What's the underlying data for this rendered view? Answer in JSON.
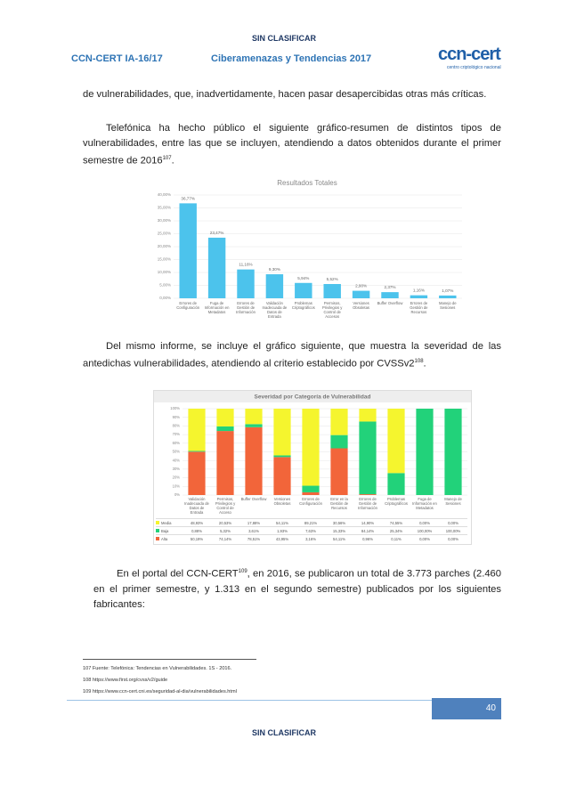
{
  "header": {
    "classification": "SIN CLASIFICAR",
    "code": "CCN-CERT IA-16/17",
    "title": "Ciberamenazas y Tendencias 2017",
    "logo": "ccn-cert",
    "logo_sub": "centro criptológico nacional"
  },
  "paragraphs": [
    {
      "text": "de vulnerabilidades, que, inadvertidamente, hacen pasar desapercibidas otras más críticas."
    },
    {
      "text": "Telefónica ha hecho público el siguiente gráfico-resumen de distintos tipos de vulnerabilidades, entre las que se incluyen, atendiendo a datos obtenidos durante el primer semestre de 2016",
      "ref": "107",
      "end": "."
    },
    {
      "text": "Del mismo informe, se incluye el gráfico siguiente, que muestra la severidad de las antedichas vulnerabilidades, atendiendo al criterio establecido por CVSSv2",
      "ref": "108",
      "end": "."
    },
    {
      "text": "En el portal del CCN-CERT",
      "ref": "109",
      "end": ", en 2016, se publicaron un total de 3.773 parches (2.460 en el primer semestre, y 1.313 en el segundo semestre) publicados por los siguientes fabricantes:"
    }
  ],
  "chart_data": [
    {
      "type": "bar",
      "title": "Resultados Totales",
      "color": "#4cc3ec",
      "grid": true,
      "categories": [
        "Errores de Configuración",
        "Fuga de Información en Metadatos",
        "Errores de Gestión de Información",
        "Validación Inadecuada de Datos de Entrada",
        "Problemas Criptográficos",
        "Permisos, Privilegios y Control de Accesos",
        "Versiones Obsoletas",
        "Buffer Overflow",
        "Errores de Gestión de Recursos",
        "Manejo de Sesiones"
      ],
      "values": [
        36.77,
        23.47,
        11.16,
        9.3,
        5.94,
        5.52,
        2.9,
        2.37,
        1.16,
        1.07
      ],
      "value_labels": [
        "36,77%",
        "23,47%",
        "11,16%",
        "9,30%",
        "5,94%",
        "5,52%",
        "2,90%",
        "2,37%",
        "1,16%",
        "1,07%"
      ],
      "ylim": [
        0,
        40
      ],
      "yticks": [
        {
          "value": 0,
          "label": "0,00%"
        },
        {
          "value": 5,
          "label": "5,00%"
        },
        {
          "value": 10,
          "label": "10,00%"
        },
        {
          "value": 15,
          "label": "15,00%"
        },
        {
          "value": 20,
          "label": "20,00%"
        },
        {
          "value": 25,
          "label": "25,00%"
        },
        {
          "value": 30,
          "label": "30,00%"
        },
        {
          "value": 35,
          "label": "35,00%"
        },
        {
          "value": 40,
          "label": "40,00%"
        }
      ]
    },
    {
      "type": "stacked_bar",
      "title": "Severidad por Categoría de Vulnerabilidad",
      "grid": true,
      "categories": [
        "Validación Inadecuada de Datos de Entrada",
        "Permisos, Privilegios y Control de Acceso",
        "Buffer Overflow",
        "Versiones Obsoletas",
        "Errores de Configuración",
        "Error en la Gestión de Recursos",
        "Errores de Gestión de Información",
        "Problemas Criptográficos",
        "Fuga de Información en Metadatos",
        "Manejo de Sesiones"
      ],
      "series": [
        {
          "name": "Media",
          "color": "#f5f52e",
          "values": [
            48.93,
            20.53,
            17.88,
            54.11,
            89.21,
            30.56,
            14.9,
            74.55,
            0,
            0
          ],
          "value_labels": [
            "48,93%",
            "20,53%",
            "17,88%",
            "54,11%",
            "89,21%",
            "30,56%",
            "14,90%",
            "74,55%",
            "0,00%",
            "0,00%"
          ]
        },
        {
          "name": "Baja",
          "color": "#22d27a",
          "values": [
            0.88,
            5.32,
            3.61,
            1.93,
            7.63,
            15.33,
            84.14,
            25.34,
            100,
            100
          ],
          "value_labels": [
            "0,88%",
            "5,32%",
            "3,61%",
            "1,93%",
            "7,63%",
            "15,33%",
            "84,14%",
            "25,34%",
            "100,00%",
            "100,00%"
          ]
        },
        {
          "name": "Alta",
          "color": "#f2653a",
          "values": [
            50.19,
            74.14,
            78.51,
            43.95,
            3.16,
            54.11,
            0.96,
            0.11,
            0,
            0
          ],
          "value_labels": [
            "50,19%",
            "74,14%",
            "78,51%",
            "43,95%",
            "3,16%",
            "54,11%",
            "0,96%",
            "0,11%",
            "0,00%",
            "0,00%"
          ]
        }
      ],
      "ylim": [
        0,
        100
      ],
      "yticks": [
        {
          "value": 0,
          "label": "0%"
        },
        {
          "value": 10,
          "label": "10%"
        },
        {
          "value": 20,
          "label": "20%"
        },
        {
          "value": 30,
          "label": "30%"
        },
        {
          "value": 40,
          "label": "40%"
        },
        {
          "value": 50,
          "label": "50%"
        },
        {
          "value": 60,
          "label": "60%"
        },
        {
          "value": 70,
          "label": "70%"
        },
        {
          "value": 80,
          "label": "80%"
        },
        {
          "value": 90,
          "label": "90%"
        },
        {
          "value": 100,
          "label": "100%"
        }
      ]
    }
  ],
  "footnotes": [
    "107 Fuente: Telefónica: Tendencias en Vulnerabilidades. 1S - 2016.",
    "108 https://www.first.org/cvss/v2/guide",
    "109 https://www.ccn-cert.cni.es/seguridad-al-dia/vulnerabilidades.html"
  ],
  "footer": {
    "page": "40",
    "classification": "SIN CLASIFICAR"
  }
}
